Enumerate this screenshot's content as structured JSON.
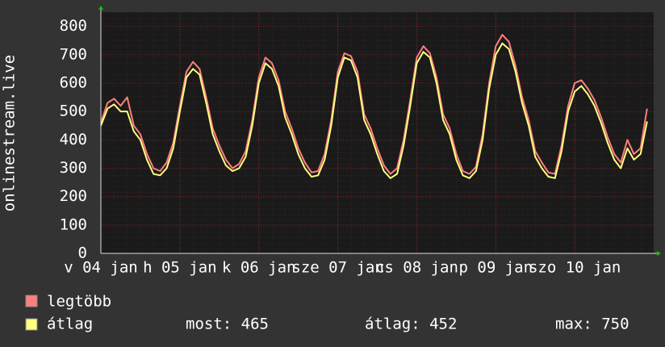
{
  "chart_data": {
    "type": "line",
    "y_label": "onlinestream.live",
    "x": [
      0,
      2,
      4,
      6,
      8,
      10,
      12,
      14,
      16,
      18,
      20,
      22,
      24,
      26,
      28,
      30,
      32,
      34,
      36,
      38,
      40,
      42,
      44,
      46,
      48,
      50,
      52,
      54,
      56,
      58,
      60,
      62,
      64,
      66,
      68,
      70,
      72,
      74,
      76,
      78,
      80,
      82,
      84,
      86,
      88,
      90,
      92,
      94,
      96,
      98,
      100,
      102,
      104,
      106,
      108,
      110,
      112,
      114,
      116,
      118,
      120,
      122,
      124,
      126,
      128,
      130,
      132,
      134,
      136,
      138,
      140,
      142,
      144,
      146,
      148,
      150,
      152,
      154,
      156,
      158,
      160,
      162,
      164,
      166
    ],
    "xlim": [
      0,
      168
    ],
    "xticks": [
      {
        "value": 0,
        "label": "v 04 jan"
      },
      {
        "value": 24,
        "label": "h 05 jan"
      },
      {
        "value": 48,
        "label": "k 06 jan"
      },
      {
        "value": 72,
        "label": "sze 07 jan"
      },
      {
        "value": 96,
        "label": "cs 08 jan"
      },
      {
        "value": 120,
        "label": "p 09 jan"
      },
      {
        "value": 144,
        "label": "szo 10 jan"
      }
    ],
    "ylim": [
      0,
      850
    ],
    "yticks": [
      0,
      100,
      200,
      300,
      400,
      500,
      600,
      700,
      800
    ],
    "grid": true,
    "series": [
      {
        "name": "legtöbb",
        "color": "#ff7f7f",
        "values": [
          460,
          530,
          545,
          520,
          550,
          450,
          420,
          350,
          300,
          290,
          320,
          390,
          520,
          640,
          675,
          650,
          550,
          440,
          380,
          330,
          300,
          315,
          360,
          470,
          620,
          690,
          670,
          610,
          500,
          440,
          370,
          320,
          285,
          290,
          350,
          470,
          640,
          705,
          695,
          640,
          490,
          440,
          370,
          310,
          280,
          300,
          400,
          540,
          690,
          730,
          705,
          620,
          490,
          440,
          350,
          290,
          280,
          305,
          420,
          600,
          730,
          770,
          745,
          660,
          550,
          470,
          360,
          320,
          285,
          280,
          380,
          520,
          600,
          610,
          580,
          540,
          480,
          410,
          350,
          320,
          400,
          350,
          370,
          510
        ]
      },
      {
        "name": "átlag",
        "color": "#ffff7f",
        "values": [
          450,
          510,
          525,
          500,
          500,
          430,
          400,
          330,
          280,
          275,
          300,
          370,
          500,
          620,
          650,
          630,
          530,
          420,
          360,
          310,
          290,
          300,
          340,
          450,
          600,
          670,
          650,
          590,
          480,
          420,
          350,
          300,
          270,
          275,
          330,
          450,
          620,
          690,
          680,
          620,
          470,
          420,
          350,
          290,
          265,
          280,
          380,
          520,
          670,
          710,
          690,
          600,
          470,
          420,
          330,
          275,
          265,
          290,
          400,
          580,
          700,
          740,
          720,
          640,
          530,
          450,
          340,
          300,
          270,
          265,
          360,
          500,
          570,
          590,
          560,
          520,
          460,
          390,
          330,
          300,
          370,
          330,
          350,
          465
        ]
      }
    ],
    "legend_stats": [
      "most: 465",
      "átlag: 452",
      "max: 750"
    ]
  }
}
